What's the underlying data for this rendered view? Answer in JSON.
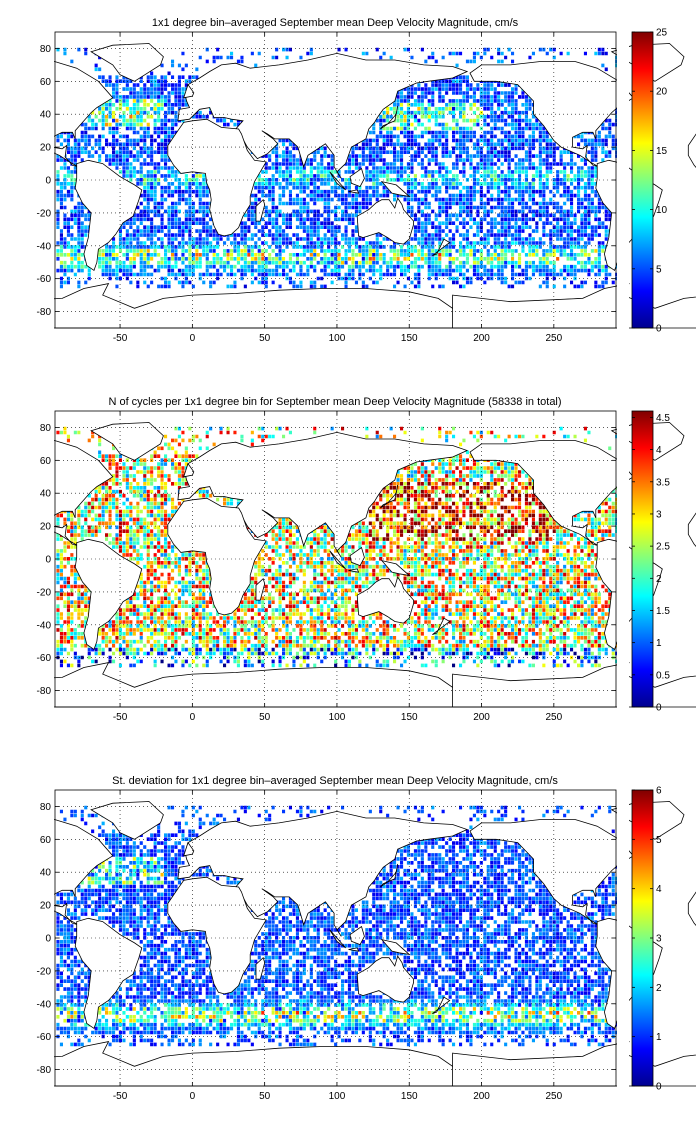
{
  "chart_data": [
    {
      "type": "heatmap",
      "title": "1x1 degree bin–averaged September mean Deep Velocity Magnitude, cm/s",
      "xlim": [
        -95,
        293
      ],
      "ylim": [
        -90,
        90
      ],
      "x_ticks": [
        -50,
        0,
        50,
        100,
        150,
        200,
        250
      ],
      "y_ticks": [
        80,
        60,
        40,
        20,
        0,
        -20,
        -40,
        -60,
        -80
      ],
      "grid": true,
      "colorbar": {
        "min": 0,
        "max": 25,
        "ticks": [
          0,
          5,
          10,
          15,
          20,
          25
        ],
        "colormap": "jet"
      }
    },
    {
      "type": "heatmap",
      "title": "N of cycles per 1x1 degree bin for September mean Deep Velocity Magnitude (58338 in total)",
      "xlim": [
        -95,
        293
      ],
      "ylim": [
        -90,
        90
      ],
      "x_ticks": [
        -50,
        0,
        50,
        100,
        150,
        200,
        250
      ],
      "y_ticks": [
        80,
        60,
        40,
        20,
        0,
        -20,
        -40,
        -60,
        -80
      ],
      "grid": true,
      "colorbar": {
        "min": 0,
        "max": 4.6,
        "ticks": [
          0,
          0.5,
          1,
          1.5,
          2,
          2.5,
          3,
          3.5,
          4,
          4.5
        ],
        "colormap": "jet"
      }
    },
    {
      "type": "heatmap",
      "title": "St. deviation for 1x1 degree bin–averaged September mean Deep Velocity Magnitude, cm/s",
      "xlim": [
        -95,
        293
      ],
      "ylim": [
        -90,
        90
      ],
      "x_ticks": [
        -50,
        0,
        50,
        100,
        150,
        200,
        250
      ],
      "y_ticks": [
        80,
        60,
        40,
        20,
        0,
        -20,
        -40,
        -60,
        -80
      ],
      "grid": true,
      "colorbar": {
        "min": 0,
        "max": 6,
        "ticks": [
          0,
          1,
          2,
          3,
          4,
          5,
          6
        ],
        "colormap": "jet"
      }
    }
  ]
}
